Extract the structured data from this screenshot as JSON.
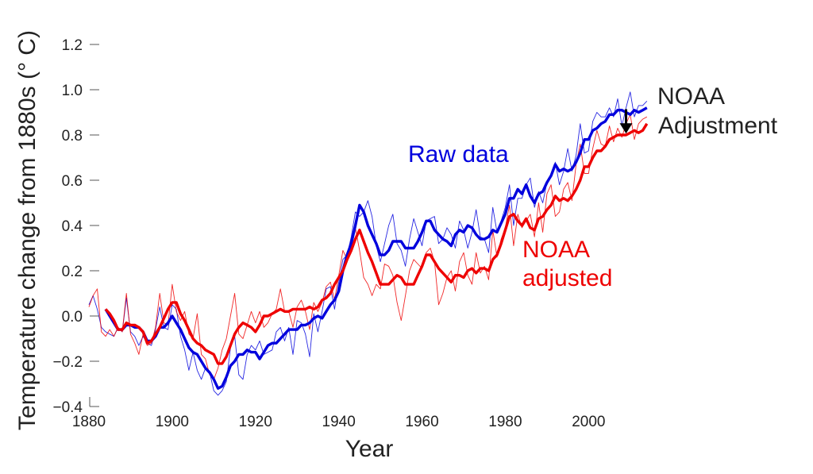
{
  "chart_data": {
    "type": "line",
    "title": "",
    "xlabel": "Year",
    "ylabel": "Temperature change from 1880s (° C)",
    "xlim": [
      1880,
      2015
    ],
    "ylim": [
      -0.4,
      1.2
    ],
    "xticks": [
      1880,
      1900,
      1920,
      1940,
      1960,
      1980,
      2000
    ],
    "yticks": [
      -0.4,
      -0.2,
      0.0,
      0.2,
      0.4,
      0.6,
      0.8,
      1.0,
      1.2
    ],
    "xtick_labels": [
      "1880",
      "1900",
      "1920",
      "1940",
      "1960",
      "1980",
      "2000"
    ],
    "ytick_labels": [
      "−0.4",
      "−0.2",
      "0.0",
      "0.2",
      "0.4",
      "0.6",
      "0.8",
      "1.0",
      "1.2"
    ],
    "grid": false,
    "colors": {
      "raw": "#0000dd",
      "adjusted": "#ee0000",
      "arrow": "#000000",
      "text": "#222222"
    },
    "series": [
      {
        "name": "Raw data",
        "style": "thin-annual",
        "x": [
          1880,
          1881,
          1882,
          1883,
          1884,
          1885,
          1886,
          1887,
          1888,
          1889,
          1890,
          1891,
          1892,
          1893,
          1894,
          1895,
          1896,
          1897,
          1898,
          1899,
          1900,
          1901,
          1902,
          1903,
          1904,
          1905,
          1906,
          1907,
          1908,
          1909,
          1910,
          1911,
          1912,
          1913,
          1914,
          1915,
          1916,
          1917,
          1918,
          1919,
          1920,
          1921,
          1922,
          1923,
          1924,
          1925,
          1926,
          1927,
          1928,
          1929,
          1930,
          1931,
          1932,
          1933,
          1934,
          1935,
          1936,
          1937,
          1938,
          1939,
          1940,
          1941,
          1942,
          1943,
          1944,
          1945,
          1946,
          1947,
          1948,
          1949,
          1950,
          1951,
          1952,
          1953,
          1954,
          1955,
          1956,
          1957,
          1958,
          1959,
          1960,
          1961,
          1962,
          1963,
          1964,
          1965,
          1966,
          1967,
          1968,
          1969,
          1970,
          1971,
          1972,
          1973,
          1974,
          1975,
          1976,
          1977,
          1978,
          1979,
          1980,
          1981,
          1982,
          1983,
          1984,
          1985,
          1986,
          1987,
          1988,
          1989,
          1990,
          1991,
          1992,
          1993,
          1994,
          1995,
          1996,
          1997,
          1998,
          1999,
          2000,
          2001,
          2002,
          2003,
          2004,
          2005,
          2006,
          2007,
          2008,
          2009,
          2010,
          2011,
          2012,
          2013,
          2014
        ],
        "values": [
          0.05,
          0.09,
          0.03,
          -0.05,
          -0.07,
          -0.08,
          -0.09,
          -0.05,
          -0.07,
          0.08,
          -0.07,
          -0.09,
          -0.13,
          -0.09,
          -0.12,
          -0.13,
          -0.06,
          0.04,
          -0.05,
          -0.06,
          0.05,
          0.03,
          -0.09,
          -0.15,
          -0.24,
          -0.16,
          -0.24,
          -0.28,
          -0.23,
          -0.25,
          -0.33,
          -0.35,
          -0.33,
          -0.29,
          -0.14,
          -0.09,
          -0.26,
          -0.28,
          -0.17,
          -0.13,
          -0.15,
          -0.11,
          -0.17,
          -0.16,
          -0.15,
          -0.07,
          -0.05,
          -0.11,
          -0.05,
          -0.17,
          -0.02,
          -0.03,
          -0.08,
          -0.18,
          0.01,
          -0.07,
          0.02,
          0.12,
          0.13,
          0.03,
          0.15,
          0.25,
          0.27,
          0.35,
          0.46,
          0.44,
          0.46,
          0.51,
          0.44,
          0.31,
          0.24,
          0.32,
          0.4,
          0.45,
          0.32,
          0.29,
          0.22,
          0.34,
          0.43,
          0.37,
          0.31,
          0.42,
          0.43,
          0.44,
          0.32,
          0.34,
          0.39,
          0.36,
          0.3,
          0.42,
          0.38,
          0.3,
          0.37,
          0.47,
          0.35,
          0.34,
          0.28,
          0.48,
          0.37,
          0.42,
          0.48,
          0.58,
          0.4,
          0.52,
          0.52,
          0.58,
          0.61,
          0.48,
          0.55,
          0.5,
          0.59,
          0.62,
          0.68,
          0.58,
          0.64,
          0.74,
          0.64,
          0.71,
          0.85,
          0.72,
          0.73,
          0.86,
          0.9,
          0.88,
          0.88,
          0.92,
          0.88,
          0.96,
          0.84,
          0.92,
          0.99,
          0.88,
          0.93,
          0.93,
          0.95
        ]
      },
      {
        "name": "NOAA adjusted",
        "style": "thin-annual",
        "x": [
          1880,
          1881,
          1882,
          1883,
          1884,
          1885,
          1886,
          1887,
          1888,
          1889,
          1890,
          1891,
          1892,
          1893,
          1894,
          1895,
          1896,
          1897,
          1898,
          1899,
          1900,
          1901,
          1902,
          1903,
          1904,
          1905,
          1906,
          1907,
          1908,
          1909,
          1910,
          1911,
          1912,
          1913,
          1914,
          1915,
          1916,
          1917,
          1918,
          1919,
          1920,
          1921,
          1922,
          1923,
          1924,
          1925,
          1926,
          1927,
          1928,
          1929,
          1930,
          1931,
          1932,
          1933,
          1934,
          1935,
          1936,
          1937,
          1938,
          1939,
          1940,
          1941,
          1942,
          1943,
          1944,
          1945,
          1946,
          1947,
          1948,
          1949,
          1950,
          1951,
          1952,
          1953,
          1954,
          1955,
          1956,
          1957,
          1958,
          1959,
          1960,
          1961,
          1962,
          1963,
          1964,
          1965,
          1966,
          1967,
          1968,
          1969,
          1970,
          1971,
          1972,
          1973,
          1974,
          1975,
          1976,
          1977,
          1978,
          1979,
          1980,
          1981,
          1982,
          1983,
          1984,
          1985,
          1986,
          1987,
          1988,
          1989,
          1990,
          1991,
          1992,
          1993,
          1994,
          1995,
          1996,
          1997,
          1998,
          1999,
          2000,
          2001,
          2002,
          2003,
          2004,
          2005,
          2006,
          2007,
          2008,
          2009,
          2010,
          2011,
          2012,
          2013,
          2014
        ],
        "values": [
          0.04,
          0.09,
          0.12,
          -0.07,
          -0.09,
          -0.06,
          -0.09,
          -0.05,
          -0.07,
          0.1,
          -0.08,
          -0.12,
          -0.17,
          -0.08,
          -0.13,
          -0.12,
          -0.05,
          0.1,
          -0.03,
          -0.04,
          0.14,
          0.02,
          -0.02,
          0.02,
          -0.08,
          -0.1,
          0.01,
          -0.17,
          -0.19,
          -0.26,
          -0.28,
          -0.23,
          -0.15,
          -0.1,
          0.0,
          0.1,
          -0.08,
          -0.1,
          -0.04,
          0.02,
          -0.03,
          0.02,
          -0.05,
          -0.03,
          0.01,
          0.03,
          0.12,
          0.02,
          0.02,
          -0.05,
          0.04,
          0.07,
          0.02,
          -0.06,
          0.06,
          0.02,
          0.06,
          0.13,
          0.15,
          0.07,
          0.18,
          0.29,
          0.25,
          0.33,
          0.39,
          0.29,
          0.17,
          0.14,
          0.09,
          0.14,
          0.12,
          0.23,
          0.22,
          0.18,
          0.06,
          -0.02,
          0.09,
          0.2,
          0.25,
          0.23,
          0.21,
          0.28,
          0.3,
          0.24,
          0.05,
          0.1,
          0.17,
          0.2,
          0.11,
          0.24,
          0.28,
          0.18,
          0.14,
          0.28,
          0.19,
          0.22,
          0.16,
          0.38,
          0.26,
          0.34,
          0.39,
          0.49,
          0.31,
          0.45,
          0.39,
          0.42,
          0.45,
          0.35,
          0.5,
          0.37,
          0.54,
          0.58,
          0.44,
          0.46,
          0.56,
          0.59,
          0.51,
          0.67,
          0.76,
          0.63,
          0.63,
          0.74,
          0.82,
          0.76,
          0.75,
          0.84,
          0.77,
          0.83,
          0.79,
          0.85,
          0.89,
          0.78,
          0.85,
          0.87,
          0.88
        ]
      },
      {
        "name": "Raw data",
        "style": "thick-smoothed",
        "x": [
          1884,
          1885,
          1886,
          1887,
          1888,
          1889,
          1890,
          1891,
          1892,
          1893,
          1894,
          1895,
          1896,
          1897,
          1898,
          1899,
          1900,
          1901,
          1902,
          1903,
          1904,
          1905,
          1906,
          1907,
          1908,
          1909,
          1910,
          1911,
          1912,
          1913,
          1914,
          1915,
          1916,
          1917,
          1918,
          1919,
          1920,
          1921,
          1922,
          1923,
          1924,
          1925,
          1926,
          1927,
          1928,
          1929,
          1930,
          1931,
          1932,
          1933,
          1934,
          1935,
          1936,
          1937,
          1938,
          1939,
          1940,
          1941,
          1942,
          1943,
          1944,
          1945,
          1946,
          1947,
          1948,
          1949,
          1950,
          1951,
          1952,
          1953,
          1954,
          1955,
          1956,
          1957,
          1958,
          1959,
          1960,
          1961,
          1962,
          1963,
          1964,
          1965,
          1966,
          1967,
          1968,
          1969,
          1970,
          1971,
          1972,
          1973,
          1974,
          1975,
          1976,
          1977,
          1978,
          1979,
          1980,
          1981,
          1982,
          1983,
          1984,
          1985,
          1986,
          1987,
          1988,
          1989,
          1990,
          1991,
          1992,
          1993,
          1994,
          1995,
          1996,
          1997,
          1998,
          1999,
          2000,
          2001,
          2002,
          2003,
          2004,
          2005,
          2006,
          2007,
          2008,
          2009,
          2010,
          2011,
          2012,
          2013,
          2014
        ],
        "values": [
          0.03,
          0.0,
          -0.03,
          -0.06,
          -0.06,
          -0.04,
          -0.04,
          -0.05,
          -0.05,
          -0.07,
          -0.11,
          -0.11,
          -0.09,
          -0.05,
          -0.05,
          -0.03,
          0.0,
          -0.03,
          -0.06,
          -0.1,
          -0.14,
          -0.16,
          -0.17,
          -0.2,
          -0.23,
          -0.25,
          -0.28,
          -0.32,
          -0.31,
          -0.27,
          -0.22,
          -0.2,
          -0.17,
          -0.17,
          -0.15,
          -0.16,
          -0.16,
          -0.19,
          -0.16,
          -0.13,
          -0.12,
          -0.12,
          -0.1,
          -0.08,
          -0.06,
          -0.06,
          -0.06,
          -0.04,
          -0.04,
          -0.03,
          -0.01,
          0.0,
          -0.01,
          0.02,
          0.05,
          0.07,
          0.11,
          0.2,
          0.27,
          0.32,
          0.4,
          0.49,
          0.46,
          0.4,
          0.36,
          0.32,
          0.27,
          0.27,
          0.29,
          0.33,
          0.33,
          0.33,
          0.3,
          0.3,
          0.3,
          0.33,
          0.37,
          0.42,
          0.42,
          0.38,
          0.36,
          0.34,
          0.33,
          0.31,
          0.36,
          0.38,
          0.37,
          0.4,
          0.39,
          0.36,
          0.34,
          0.34,
          0.35,
          0.38,
          0.37,
          0.41,
          0.45,
          0.52,
          0.52,
          0.56,
          0.54,
          0.58,
          0.53,
          0.5,
          0.54,
          0.55,
          0.59,
          0.62,
          0.67,
          0.64,
          0.65,
          0.64,
          0.65,
          0.68,
          0.72,
          0.78,
          0.78,
          0.82,
          0.83,
          0.85,
          0.86,
          0.89,
          0.89,
          0.91,
          0.91,
          0.9,
          0.89,
          0.91,
          0.9,
          0.91,
          0.92
        ]
      },
      {
        "name": "NOAA adjusted",
        "style": "thick-smoothed",
        "x": [
          1884,
          1885,
          1886,
          1887,
          1888,
          1889,
          1890,
          1891,
          1892,
          1893,
          1894,
          1895,
          1896,
          1897,
          1898,
          1899,
          1900,
          1901,
          1902,
          1903,
          1904,
          1905,
          1906,
          1907,
          1908,
          1909,
          1910,
          1911,
          1912,
          1913,
          1914,
          1915,
          1916,
          1917,
          1918,
          1919,
          1920,
          1921,
          1922,
          1923,
          1924,
          1925,
          1926,
          1927,
          1928,
          1929,
          1930,
          1931,
          1932,
          1933,
          1934,
          1935,
          1936,
          1937,
          1938,
          1939,
          1940,
          1941,
          1942,
          1943,
          1944,
          1945,
          1946,
          1947,
          1948,
          1949,
          1950,
          1951,
          1952,
          1953,
          1954,
          1955,
          1956,
          1957,
          1958,
          1959,
          1960,
          1961,
          1962,
          1963,
          1964,
          1965,
          1966,
          1967,
          1968,
          1969,
          1970,
          1971,
          1972,
          1973,
          1974,
          1975,
          1976,
          1977,
          1978,
          1979,
          1980,
          1981,
          1982,
          1983,
          1984,
          1985,
          1986,
          1987,
          1988,
          1989,
          1990,
          1991,
          1992,
          1993,
          1994,
          1995,
          1996,
          1997,
          1998,
          1999,
          2000,
          2001,
          2002,
          2003,
          2004,
          2005,
          2006,
          2007,
          2008,
          2009,
          2010,
          2011,
          2012,
          2013,
          2014
        ],
        "values": [
          0.03,
          0.01,
          -0.02,
          -0.06,
          -0.06,
          -0.03,
          -0.04,
          -0.04,
          -0.05,
          -0.07,
          -0.12,
          -0.11,
          -0.08,
          -0.05,
          -0.01,
          0.03,
          0.06,
          0.06,
          0.01,
          -0.02,
          -0.06,
          -0.1,
          -0.12,
          -0.13,
          -0.15,
          -0.16,
          -0.17,
          -0.21,
          -0.21,
          -0.18,
          -0.13,
          -0.08,
          -0.05,
          -0.03,
          -0.04,
          -0.05,
          -0.07,
          -0.04,
          -0.0,
          0.0,
          0.01,
          0.02,
          0.03,
          0.02,
          0.02,
          0.03,
          0.03,
          0.03,
          0.03,
          0.04,
          0.03,
          0.04,
          0.07,
          0.08,
          0.1,
          0.14,
          0.17,
          0.2,
          0.25,
          0.29,
          0.34,
          0.38,
          0.33,
          0.28,
          0.24,
          0.19,
          0.14,
          0.14,
          0.14,
          0.16,
          0.18,
          0.17,
          0.14,
          0.14,
          0.14,
          0.18,
          0.22,
          0.27,
          0.27,
          0.24,
          0.21,
          0.19,
          0.17,
          0.15,
          0.18,
          0.18,
          0.17,
          0.2,
          0.21,
          0.19,
          0.21,
          0.21,
          0.2,
          0.25,
          0.27,
          0.32,
          0.38,
          0.44,
          0.45,
          0.42,
          0.4,
          0.43,
          0.39,
          0.38,
          0.43,
          0.44,
          0.47,
          0.49,
          0.53,
          0.51,
          0.52,
          0.51,
          0.53,
          0.56,
          0.6,
          0.66,
          0.66,
          0.7,
          0.73,
          0.73,
          0.75,
          0.78,
          0.79,
          0.8,
          0.8,
          0.8,
          0.81,
          0.82,
          0.81,
          0.82,
          0.85
        ]
      }
    ],
    "annotations": {
      "raw_label": "Raw data",
      "adjusted_label_1": "NOAA",
      "adjusted_label_2": "adjusted",
      "adjustment_label_1": "NOAA",
      "adjustment_label_2": "Adjustment"
    },
    "adjustment_arrow": {
      "x": 2009,
      "from": 0.9,
      "to": 0.82
    }
  }
}
